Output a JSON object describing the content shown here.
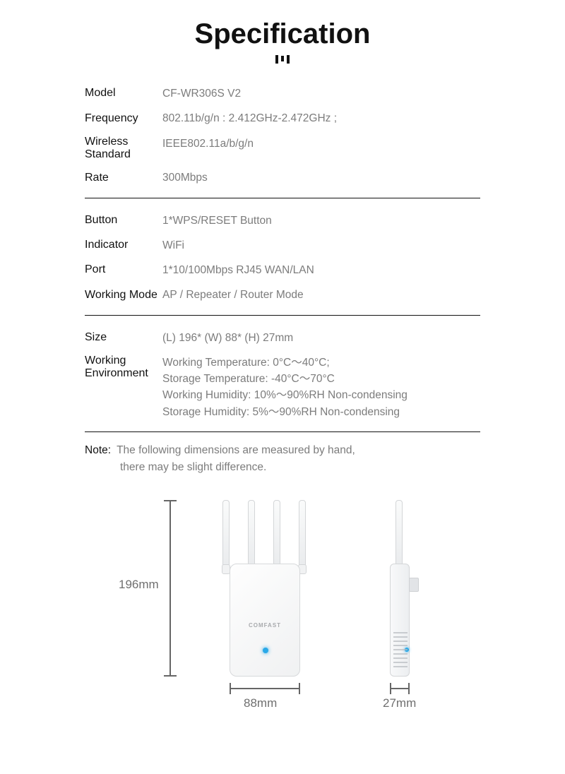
{
  "title": "Specification",
  "groups": [
    [
      {
        "label": "Model",
        "value": "CF-WR306S V2"
      },
      {
        "label": "Frequency",
        "value": "802.11b/g/n : 2.412GHz-2.472GHz ;"
      },
      {
        "label": "Wireless Standard",
        "value": "IEEE802.11a/b/g/n"
      },
      {
        "label": "Rate",
        "value": "300Mbps"
      }
    ],
    [
      {
        "label": "Button",
        "value": "1*WPS/RESET Button"
      },
      {
        "label": "Indicator",
        "value": "WiFi"
      },
      {
        "label": "Port",
        "value": "1*10/100Mbps RJ45 WAN/LAN"
      },
      {
        "label": "Working Mode",
        "value": "AP / Repeater / Router Mode"
      }
    ],
    [
      {
        "label": "Size",
        "value": "(L)  196*  (W)  88*  (H)  27mm"
      },
      {
        "label": "Working Environment",
        "value": "Working Temperature:  0°C～40°C;\nStorage Temperature:  -40°C～70°C\nWorking Humidity:  10%～90%RH Non-condensing\nStorage Humidity:  5%～90%RH Non-condensing"
      }
    ]
  ],
  "note": {
    "label": "Note:",
    "line1": "The following dimensions are measured by hand,",
    "line2": "there may be slight difference."
  },
  "dimensions": {
    "height": "196mm",
    "width": "88mm",
    "depth": "27mm",
    "brand": "COMFAST"
  },
  "colors": {
    "text": "#111111",
    "muted": "#7c7c7c",
    "line": "#666666",
    "led": "#2aa9e8"
  },
  "typography": {
    "title_fontsize": 40,
    "label_fontsize": 16,
    "value_fontsize": 15.5,
    "dim_fontsize": 17
  }
}
